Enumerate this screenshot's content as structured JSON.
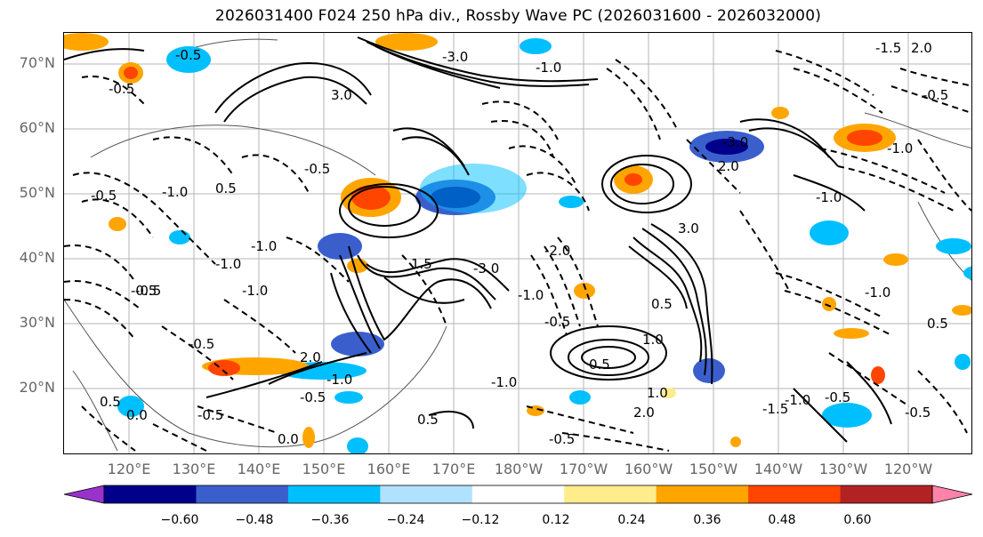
{
  "title": "2026031400 F024 250 hPa div., Rossby Wave PC (2026031600 - 2026032000)",
  "lat_labels": [
    "70°N",
    "60°N",
    "50°N",
    "40°N",
    "30°N",
    "20°N"
  ],
  "lon_labels": [
    "120°E",
    "130°E",
    "140°E",
    "150°E",
    "160°E",
    "170°E",
    "180°W",
    "170°W",
    "160°W",
    "150°W",
    "140°W",
    "130°W",
    "120°W"
  ],
  "colorbar": {
    "ticks": [
      "−0.60",
      "−0.48",
      "−0.36",
      "−0.24",
      "−0.12",
      "0.12",
      "0.24",
      "0.36",
      "0.48",
      "0.60"
    ],
    "colors": [
      "#9932cc",
      "#00008b",
      "#3a5fcd",
      "#00bfff",
      "#b0e2ff",
      "#ffffff",
      "#ffec8b",
      "#ffa500",
      "#ff4500",
      "#b22222",
      "#ff82ab"
    ]
  },
  "contour_labels": [
    "-1.5",
    "2.0",
    "-3.0",
    "-0.5",
    "3.0",
    "-0.5",
    "-1.0",
    "0.5",
    "-0.5",
    "-1.0",
    "1.5",
    "-3.0",
    "2.0",
    "-1.0",
    "-0.5",
    "-1.0",
    "3.0",
    "-3.0",
    "-0.5",
    "-0.5",
    "0.5",
    "-1.0",
    "0.5",
    "1.0",
    "0.5",
    "2.0",
    "-0.5",
    "-1.0",
    "0.0",
    "-0.5",
    "-1.0",
    "-0.5",
    "0.5",
    "1.0",
    "2.0",
    "-1.0",
    "-1.5",
    "-0.5",
    "-0.5",
    "-2.0",
    "-1.0",
    "-0.5",
    "-1.0",
    "-0.5",
    "-1.0",
    "0.5",
    "0.0",
    "-0.5",
    "-1.0"
  ]
}
